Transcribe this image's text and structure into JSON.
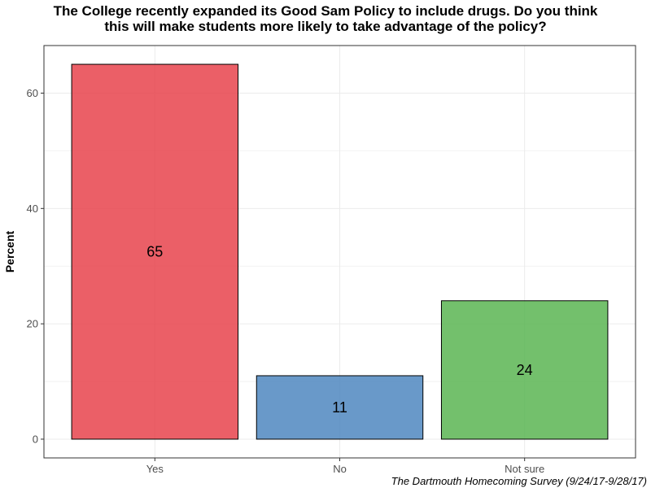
{
  "chart_data": {
    "type": "bar",
    "title_lines": [
      "The College recently expanded its Good Sam Policy to include drugs. Do you think",
      "this will make students more likely to take advantage of the policy?"
    ],
    "xlabel": "",
    "ylabel": "Percent",
    "caption": "The Dartmouth Homecoming Survey (9/24/17-9/28/17)",
    "categories": [
      "Yes",
      "No",
      "Not sure"
    ],
    "values": [
      65,
      11,
      24
    ],
    "data_labels": [
      "65",
      "11",
      "24"
    ],
    "colors": [
      "#e8434c",
      "#4f87c0",
      "#5ab552"
    ],
    "ylim": [
      -3.25,
      68.25
    ],
    "yticks": [
      0,
      20,
      40,
      60
    ],
    "ytick_labels": [
      "0",
      "20",
      "40",
      "60"
    ],
    "grid": true,
    "legend": "none"
  }
}
